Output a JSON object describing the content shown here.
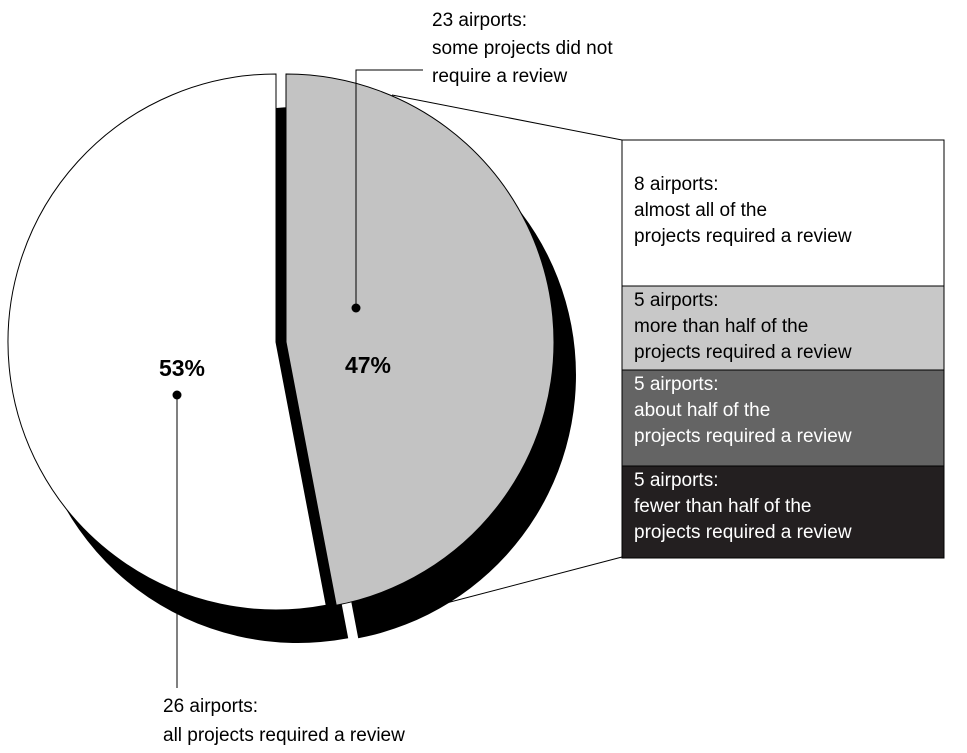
{
  "chart_data": {
    "type": "pie",
    "title": "",
    "slices": [
      {
        "key": "some",
        "percent": 47,
        "percent_label": "47%",
        "callout": [
          "23 airports:",
          "some projects did not",
          "require a review"
        ],
        "color": "#c3c3c3",
        "exploded": true
      },
      {
        "key": "all",
        "percent": 53,
        "percent_label": "53%",
        "callout": [
          "26 airports:",
          "all projects required a review"
        ],
        "color": "#ffffff",
        "exploded": false
      }
    ],
    "breakdown_of": "some",
    "breakdown": [
      {
        "key": "almost-all",
        "airports": 8,
        "lines": [
          "8 airports:",
          "almost all of the",
          "projects required a review"
        ],
        "fill": "#ffffff",
        "text_color": "#000000"
      },
      {
        "key": "more-than-half",
        "airports": 5,
        "lines": [
          "5 airports:",
          "more than half of the",
          "projects required a review"
        ],
        "fill": "#c8c8c8",
        "text_color": "#000000"
      },
      {
        "key": "about-half",
        "airports": 5,
        "lines": [
          "5 airports:",
          "about half of the",
          "projects required a review"
        ],
        "fill": "#646464",
        "text_color": "#ffffff"
      },
      {
        "key": "fewer-than-half",
        "airports": 5,
        "lines": [
          "5 airports:",
          "fewer than half of the",
          "projects required a review"
        ],
        "fill": "#231f20",
        "text_color": "#ffffff"
      }
    ],
    "shadow_color": "#000000",
    "outline_color": "#000000"
  }
}
